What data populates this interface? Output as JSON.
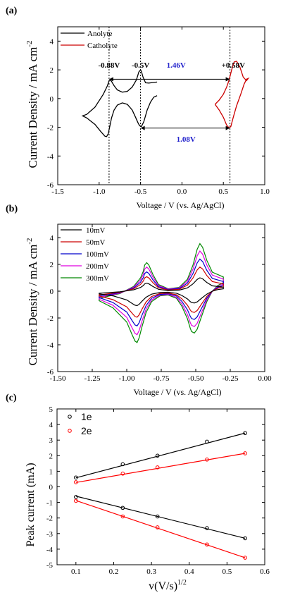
{
  "chart_data": [
    {
      "panel_label": "(a)",
      "type": "line",
      "xlabel": "Voltage / V (vs. Ag/AgCl)",
      "ylabel": "Current Density / mA cm",
      "ylabel_sup": "-2",
      "xlim": [
        -1.5,
        1.0
      ],
      "ylim": [
        -6,
        5
      ],
      "xticks": [
        -1.5,
        -1.0,
        -0.5,
        0.0,
        0.5,
        1.0
      ],
      "xtick_labels": [
        "-1.5",
        "-1.0",
        "-0.5",
        "0.0",
        "0.5",
        "1.0"
      ],
      "yticks": [
        -6,
        -4,
        -2,
        0,
        2,
        4
      ],
      "ytick_labels": [
        "-6",
        "-4",
        "-2",
        "0",
        "2",
        "4"
      ],
      "legend_position": "top-left",
      "series": [
        {
          "name": "Anolyte",
          "color": "#000000",
          "x": [
            -0.3,
            -0.35,
            -0.4,
            -0.44,
            -0.47,
            -0.49,
            -0.5,
            -0.52,
            -0.55,
            -0.6,
            -0.66,
            -0.72,
            -0.78,
            -0.82,
            -0.85,
            -0.87,
            -0.88,
            -0.9,
            -0.95,
            -1.05,
            -1.15,
            -1.2,
            -1.15,
            -1.05,
            -0.98,
            -0.93,
            -0.91,
            -0.89,
            -0.87,
            -0.85,
            -0.82,
            -0.78,
            -0.72,
            -0.66,
            -0.6,
            -0.56,
            -0.53,
            -0.51,
            -0.49,
            -0.46,
            -0.42,
            -0.38,
            -0.34,
            -0.3
          ],
          "y": [
            1.15,
            1.12,
            1.08,
            1.1,
            1.5,
            1.9,
            2.0,
            1.85,
            1.3,
            0.8,
            0.5,
            0.45,
            0.6,
            0.9,
            1.2,
            1.3,
            1.25,
            0.9,
            0.3,
            -0.6,
            -1.1,
            -1.2,
            -1.35,
            -1.8,
            -2.3,
            -2.62,
            -2.65,
            -2.45,
            -1.9,
            -1.35,
            -0.8,
            -0.45,
            -0.3,
            -0.4,
            -0.8,
            -1.3,
            -1.7,
            -1.9,
            -1.95,
            -1.6,
            -0.8,
            -0.25,
            0.1,
            0.2
          ]
        },
        {
          "name": "Catholyte",
          "color": "#cc0000",
          "x": [
            0.4,
            0.45,
            0.5,
            0.54,
            0.57,
            0.59,
            0.62,
            0.66,
            0.71,
            0.75,
            0.78,
            0.8,
            0.78,
            0.74,
            0.7,
            0.66,
            0.63,
            0.6,
            0.57,
            0.54,
            0.5,
            0.45,
            0.4
          ],
          "y": [
            -0.4,
            -0.8,
            -1.3,
            -1.85,
            -2.05,
            -1.95,
            -1.3,
            -0.5,
            0.3,
            1.0,
            1.35,
            1.4,
            1.25,
            1.5,
            2.2,
            2.6,
            2.55,
            2.0,
            1.3,
            0.8,
            0.3,
            -0.1,
            -0.4
          ]
        }
      ],
      "annotations": [
        {
          "text": "-0.88V",
          "x": -0.88,
          "y": 2.35,
          "color": "#000000"
        },
        {
          "text": "-0.5V",
          "x": -0.5,
          "y": 2.35,
          "color": "#000000"
        },
        {
          "text": "+0.58V",
          "x": 0.62,
          "y": 2.35,
          "color": "#000000"
        },
        {
          "text": "1.46V",
          "x": -0.07,
          "y": 2.35,
          "color": "#2222cc"
        },
        {
          "text": "1.08V",
          "x": 0.05,
          "y": -2.8,
          "color": "#2222cc"
        }
      ],
      "guide_lines_x": [
        -0.88,
        -0.5,
        0.58
      ],
      "arrows": [
        {
          "from": [
            -0.88,
            1.35
          ],
          "to": [
            0.58,
            1.35
          ]
        },
        {
          "from": [
            -0.5,
            -2.05
          ],
          "to": [
            0.58,
            -2.05
          ]
        }
      ]
    },
    {
      "panel_label": "(b)",
      "type": "line",
      "xlabel": "Voltage / V (vs. Ag/AgCl)",
      "ylabel": "Current Density / mA cm",
      "ylabel_sup": "-2",
      "xlim": [
        -1.5,
        0.0
      ],
      "ylim": [
        -6,
        5
      ],
      "xticks": [
        -1.5,
        -1.25,
        -1.0,
        -0.75,
        -0.5,
        -0.25,
        0.0
      ],
      "xtick_labels": [
        "-1.50",
        "-1.25",
        "-1.00",
        "-0.75",
        "-0.50",
        "-0.25",
        "0.00"
      ],
      "yticks": [
        -6,
        -4,
        -2,
        0,
        2,
        4
      ],
      "ytick_labels": [
        "-6",
        "-4",
        "-2",
        "0",
        "2",
        "4"
      ],
      "legend_position": "top-left",
      "shape": {
        "x": [
          -0.3,
          -0.38,
          -0.42,
          -0.45,
          -0.47,
          -0.49,
          -0.52,
          -0.56,
          -0.62,
          -0.7,
          -0.77,
          -0.81,
          -0.84,
          -0.855,
          -0.87,
          -0.88,
          -0.9,
          -0.95,
          -1.05,
          -1.2,
          -1.2,
          -1.1,
          -1.0,
          -0.96,
          -0.94,
          -0.925,
          -0.91,
          -0.89,
          -0.86,
          -0.82,
          -0.76,
          -0.7,
          -0.64,
          -0.6,
          -0.56,
          -0.54,
          -0.53,
          -0.51,
          -0.49,
          -0.46,
          -0.42,
          -0.38,
          -0.34,
          -0.3
        ],
        "y": [
          0.3,
          0.4,
          0.65,
          0.92,
          1.0,
          0.88,
          0.55,
          0.25,
          0.08,
          0.05,
          0.14,
          0.35,
          0.55,
          0.6,
          0.55,
          0.42,
          0.28,
          0.1,
          -0.05,
          -0.15,
          -0.2,
          -0.35,
          -0.65,
          -0.92,
          -1.05,
          -1.08,
          -0.98,
          -0.75,
          -0.45,
          -0.22,
          -0.1,
          -0.08,
          -0.15,
          -0.32,
          -0.58,
          -0.78,
          -0.85,
          -0.88,
          -0.8,
          -0.55,
          -0.22,
          0.0,
          0.12,
          0.18
        ]
      },
      "series": [
        {
          "name": "10mV",
          "color": "#000000",
          "scale": 1.0
        },
        {
          "name": "50mV",
          "color": "#cc0000",
          "scale": 1.8
        },
        {
          "name": "100mV",
          "color": "#0000cc",
          "scale": 2.4
        },
        {
          "name": "200mV",
          "color": "#e000e0",
          "scale": 3.0
        },
        {
          "name": "300mV",
          "color": "#008800",
          "scale": 3.55
        }
      ]
    },
    {
      "panel_label": "(c)",
      "type": "scatter",
      "xlabel": "v(V/s)",
      "xlabel_sup": "1/2",
      "ylabel": "Peak current (mA)",
      "xlim": [
        0.05,
        0.6
      ],
      "ylim": [
        -5,
        5
      ],
      "xticks": [
        0.1,
        0.2,
        0.3,
        0.4,
        0.5,
        0.6
      ],
      "xtick_labels": [
        "0.1",
        "0.2",
        "0.3",
        "0.4",
        "0.5",
        "0.6"
      ],
      "yticks": [
        -5,
        -4,
        -3,
        -2,
        -1,
        0,
        1,
        2,
        3,
        4,
        5
      ],
      "ytick_labels": [
        "-5",
        "-4",
        "-3",
        "-2",
        "-1",
        "0",
        "1",
        "2",
        "3",
        "4",
        "5"
      ],
      "legend_position": "top-left",
      "x": [
        0.1,
        0.224,
        0.316,
        0.447,
        0.548
      ],
      "series": [
        {
          "name": "1e",
          "color": "#000000",
          "values": [
            0.6,
            1.45,
            2.0,
            2.9,
            3.45
          ],
          "fit": [
            0.58,
            3.45
          ]
        },
        {
          "name": "1e",
          "color": "#000000",
          "values": [
            -0.65,
            -1.35,
            -1.9,
            -2.65,
            -3.3
          ],
          "fit": [
            -0.6,
            -3.3
          ]
        },
        {
          "name": "2e",
          "color": "#ff0000",
          "values": [
            0.3,
            0.85,
            1.25,
            1.75,
            2.15
          ],
          "fit": [
            0.28,
            2.15
          ]
        },
        {
          "name": "2e",
          "color": "#ff0000",
          "values": [
            -0.9,
            -1.9,
            -2.6,
            -3.7,
            -4.55
          ],
          "fit": [
            -0.88,
            -4.55
          ]
        }
      ]
    }
  ]
}
